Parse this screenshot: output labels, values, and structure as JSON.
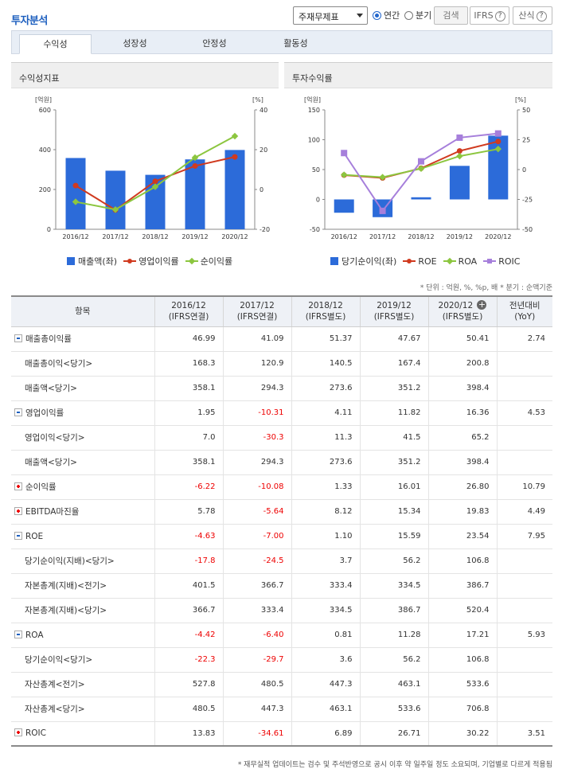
{
  "header": {
    "title": "투자분석",
    "statement_select": "주재무제표",
    "period_annual": "연간",
    "period_quarter": "분기",
    "search_label": "검색",
    "ifrs_label": "IFRS",
    "formula_label": "산식",
    "help_glyph": "?"
  },
  "tabs": [
    "수익성",
    "성장성",
    "안정성",
    "활동성"
  ],
  "panels": {
    "left_title": "수익성지표",
    "right_title": "투자수익률"
  },
  "colors": {
    "bar": "#2c6bd9",
    "red": "#d03a1f",
    "green": "#8cc63f",
    "purple": "#a67fdb"
  },
  "chart_data": [
    {
      "type": "bar+line",
      "title": "수익성지표",
      "categories": [
        "2016/12",
        "2017/12",
        "2018/12",
        "2019/12",
        "2020/12"
      ],
      "left_unit": "[억원]",
      "right_unit": "[%]",
      "left_ylim": [
        0,
        600
      ],
      "right_ylim": [
        -20,
        40
      ],
      "left_ticks": [
        0,
        200,
        400,
        600
      ],
      "right_ticks": [
        -20,
        0,
        20,
        40
      ],
      "series": [
        {
          "name": "매출액(좌)",
          "kind": "bar",
          "axis": "left",
          "values": [
            358.1,
            294.3,
            273.6,
            351.2,
            398.4
          ]
        },
        {
          "name": "영업이익률",
          "kind": "line",
          "axis": "right",
          "marker": "circle",
          "values": [
            1.95,
            -10.31,
            4.11,
            11.82,
            16.36
          ]
        },
        {
          "name": "순이익률",
          "kind": "line",
          "axis": "right",
          "marker": "diamond",
          "values": [
            -6.22,
            -10.08,
            1.33,
            16.01,
            26.8
          ]
        }
      ]
    },
    {
      "type": "bar+line",
      "title": "투자수익률",
      "categories": [
        "2016/12",
        "2017/12",
        "2018/12",
        "2019/12",
        "2020/12"
      ],
      "left_unit": "[억원]",
      "right_unit": "[%]",
      "left_ylim": [
        -50,
        150
      ],
      "right_ylim": [
        -50,
        50
      ],
      "left_ticks": [
        -50,
        0,
        50,
        100,
        150
      ],
      "right_ticks": [
        -50,
        -25,
        0,
        25,
        50
      ],
      "series": [
        {
          "name": "당기순이익(좌)",
          "kind": "bar",
          "axis": "left",
          "values": [
            -22.3,
            -29.7,
            3.6,
            56.2,
            106.8
          ]
        },
        {
          "name": "ROE",
          "kind": "line",
          "axis": "right",
          "marker": "circle",
          "values": [
            -4.63,
            -7.0,
            1.1,
            15.59,
            23.54
          ]
        },
        {
          "name": "ROA",
          "kind": "line",
          "axis": "right",
          "marker": "diamond",
          "values": [
            -4.42,
            -6.4,
            0.81,
            11.28,
            17.21
          ]
        },
        {
          "name": "ROIC",
          "kind": "line",
          "axis": "right",
          "marker": "square",
          "values": [
            13.83,
            -34.61,
            6.89,
            26.71,
            30.22
          ]
        }
      ]
    }
  ],
  "unit_note": "* 단위 : 억원, %, %p, 배   * 분기 : 순액기준",
  "table": {
    "headers": [
      {
        "l1": "항목",
        "l2": ""
      },
      {
        "l1": "2016/12",
        "l2": "(IFRS연결)"
      },
      {
        "l1": "2017/12",
        "l2": "(IFRS연결)"
      },
      {
        "l1": "2018/12",
        "l2": "(IFRS별도)"
      },
      {
        "l1": "2019/12",
        "l2": "(IFRS별도)"
      },
      {
        "l1": "2020/12",
        "l2": "(IFRS별도)"
      },
      {
        "l1": "전년대비",
        "l2": "(YoY)"
      }
    ],
    "rows": [
      {
        "label": "매출총이익률",
        "toggle": "minus",
        "values": [
          "46.99",
          "41.09",
          "51.37",
          "47.67",
          "50.41",
          "2.74"
        ]
      },
      {
        "label": "매출총이익<당기>",
        "toggle": "",
        "values": [
          "168.3",
          "120.9",
          "140.5",
          "167.4",
          "200.8",
          ""
        ]
      },
      {
        "label": "매출액<당기>",
        "toggle": "",
        "values": [
          "358.1",
          "294.3",
          "273.6",
          "351.2",
          "398.4",
          ""
        ]
      },
      {
        "label": "영업이익률",
        "toggle": "minus",
        "values": [
          "1.95",
          "-10.31",
          "4.11",
          "11.82",
          "16.36",
          "4.53"
        ]
      },
      {
        "label": "영업이익<당기>",
        "toggle": "",
        "values": [
          "7.0",
          "-30.3",
          "11.3",
          "41.5",
          "65.2",
          ""
        ]
      },
      {
        "label": "매출액<당기>",
        "toggle": "",
        "values": [
          "358.1",
          "294.3",
          "273.6",
          "351.2",
          "398.4",
          ""
        ]
      },
      {
        "label": "순이익률",
        "toggle": "plus",
        "values": [
          "-6.22",
          "-10.08",
          "1.33",
          "16.01",
          "26.80",
          "10.79"
        ]
      },
      {
        "label": "EBITDA마진율",
        "toggle": "plus",
        "values": [
          "5.78",
          "-5.64",
          "8.12",
          "15.34",
          "19.83",
          "4.49"
        ]
      },
      {
        "label": "ROE",
        "toggle": "minus",
        "values": [
          "-4.63",
          "-7.00",
          "1.10",
          "15.59",
          "23.54",
          "7.95"
        ]
      },
      {
        "label": "당기순이익(지배)<당기>",
        "toggle": "",
        "values": [
          "-17.8",
          "-24.5",
          "3.7",
          "56.2",
          "106.8",
          ""
        ]
      },
      {
        "label": "자본총계(지배)<전기>",
        "toggle": "",
        "values": [
          "401.5",
          "366.7",
          "333.4",
          "334.5",
          "386.7",
          ""
        ]
      },
      {
        "label": "자본총계(지배)<당기>",
        "toggle": "",
        "values": [
          "366.7",
          "333.4",
          "334.5",
          "386.7",
          "520.4",
          ""
        ]
      },
      {
        "label": "ROA",
        "toggle": "minus",
        "values": [
          "-4.42",
          "-6.40",
          "0.81",
          "11.28",
          "17.21",
          "5.93"
        ]
      },
      {
        "label": "당기순이익<당기>",
        "toggle": "",
        "values": [
          "-22.3",
          "-29.7",
          "3.6",
          "56.2",
          "106.8",
          ""
        ]
      },
      {
        "label": "자산총계<전기>",
        "toggle": "",
        "values": [
          "527.8",
          "480.5",
          "447.3",
          "463.1",
          "533.6",
          ""
        ]
      },
      {
        "label": "자산총계<당기>",
        "toggle": "",
        "values": [
          "480.5",
          "447.3",
          "463.1",
          "533.6",
          "706.8",
          ""
        ]
      },
      {
        "label": "ROIC",
        "toggle": "plus",
        "values": [
          "13.83",
          "-34.61",
          "6.89",
          "26.71",
          "30.22",
          "3.51"
        ]
      }
    ]
  },
  "footer_note": "* 재무실적 업데이트는 검수 및 주석반영으로 공시 이후 약 일주일 정도 소요되며, 기업별로 다르게 적용됨"
}
